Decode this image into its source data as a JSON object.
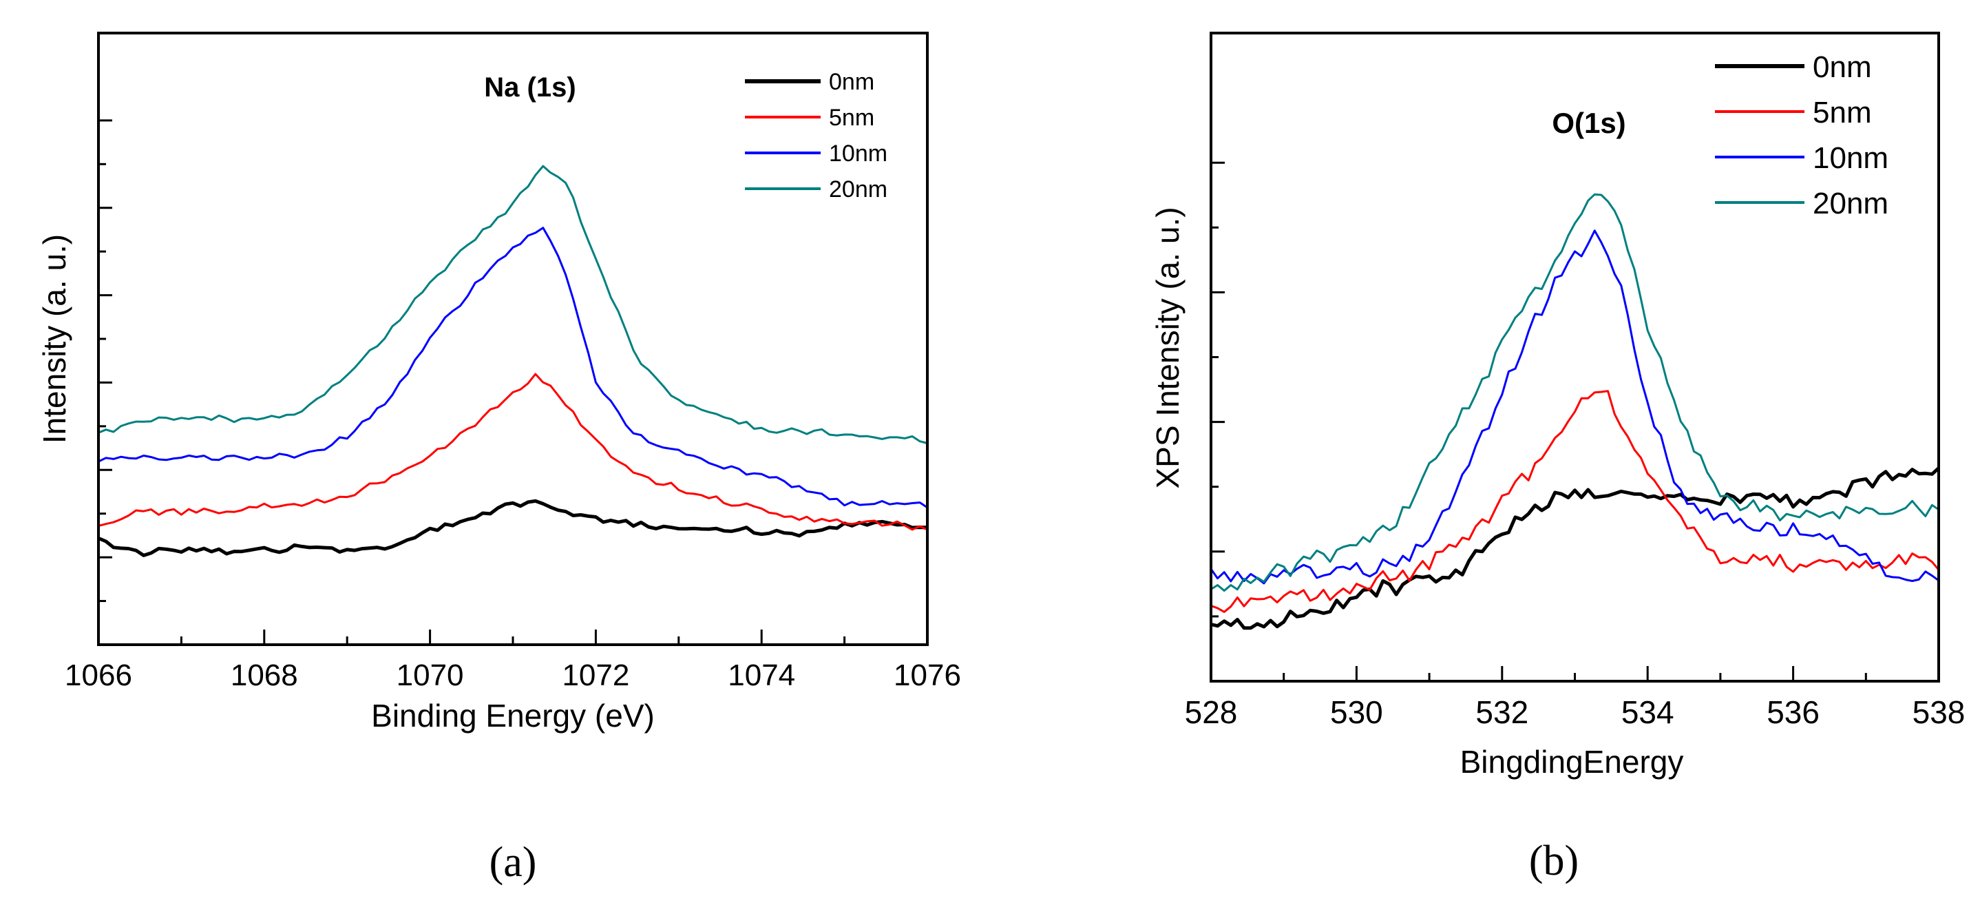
{
  "figure": {
    "panel_labels": [
      "(a)",
      "(b)"
    ]
  },
  "chart_data": [
    {
      "type": "line",
      "panel_label": "(a)",
      "title": "",
      "annotation": "Na (1s)",
      "xlabel": "Binding Energy (eV)",
      "ylabel": "Intensity (a. u.)",
      "xlim": [
        1066,
        1076
      ],
      "ylim": [
        0,
        100
      ],
      "xticks": [
        1066,
        1068,
        1070,
        1072,
        1074,
        1076
      ],
      "legend_position": "top-right",
      "series": [
        {
          "name": "0nm",
          "color": "#000000",
          "x": [
            1066,
            1066.5,
            1067,
            1067.5,
            1068,
            1068.5,
            1069,
            1069.5,
            1070,
            1070.5,
            1071,
            1071.3,
            1071.6,
            1072,
            1072.5,
            1073,
            1073.5,
            1074,
            1074.5,
            1075,
            1075.5,
            1076
          ],
          "y": [
            17,
            15,
            15.5,
            15,
            15.5,
            16,
            15.5,
            16,
            18.5,
            20.5,
            23,
            23,
            21.5,
            20.5,
            19.5,
            19,
            19,
            18.5,
            18,
            19.5,
            20,
            19
          ]
        },
        {
          "name": "5nm",
          "color": "#ff0000",
          "x": [
            1066,
            1066.5,
            1067,
            1067.5,
            1068,
            1068.5,
            1069,
            1069.5,
            1070,
            1070.5,
            1071,
            1071.3,
            1071.6,
            1072,
            1072.5,
            1073,
            1073.5,
            1074,
            1074.5,
            1075,
            1075.5,
            1076
          ],
          "y": [
            19.5,
            22,
            21.5,
            22,
            22.5,
            23,
            24.5,
            27,
            31,
            35.5,
            41,
            44,
            40,
            33,
            28,
            25.5,
            23.5,
            22,
            20.5,
            20,
            20,
            19
          ]
        },
        {
          "name": "10nm",
          "color": "#0000ff",
          "x": [
            1066,
            1066.5,
            1067,
            1067.5,
            1068,
            1068.5,
            1069,
            1069.5,
            1070,
            1070.5,
            1071,
            1071.4,
            1071.7,
            1072,
            1072.5,
            1073,
            1073.5,
            1074,
            1074.5,
            1075,
            1075.5,
            1076
          ],
          "y": [
            30.5,
            30.5,
            30.5,
            30.5,
            30.5,
            31,
            34,
            40,
            50,
            58,
            65,
            68.5,
            58,
            43,
            34,
            31.5,
            29,
            28,
            25.5,
            23,
            23,
            23
          ]
        },
        {
          "name": "20nm",
          "color": "#008080",
          "x": [
            1066,
            1066.5,
            1067,
            1067.5,
            1068,
            1068.5,
            1069,
            1069.5,
            1070,
            1070.5,
            1071,
            1071.4,
            1071.7,
            1072,
            1072.5,
            1073,
            1073.5,
            1074,
            1074.5,
            1075,
            1075.5,
            1076
          ],
          "y": [
            34.5,
            36.5,
            37,
            37,
            37,
            38.5,
            44,
            51,
            59,
            66,
            72,
            78.5,
            74,
            63,
            47,
            40,
            37.5,
            35,
            35,
            34.5,
            34,
            33.5
          ]
        }
      ]
    },
    {
      "type": "line",
      "panel_label": "(b)",
      "title": "",
      "annotation": "O(1s)",
      "xlabel": "BingdingEnergy",
      "ylabel": "XPS Intensity (a. u.)",
      "xlim": [
        528,
        538
      ],
      "ylim": [
        0,
        100
      ],
      "xticks": [
        528,
        530,
        532,
        534,
        536,
        538
      ],
      "legend_position": "top-right",
      "series": [
        {
          "name": "0nm",
          "color": "#000000",
          "x": [
            528,
            528.5,
            529,
            529.5,
            530,
            530.5,
            531,
            531.5,
            532,
            532.5,
            533,
            533.5,
            534,
            534.5,
            535,
            535.5,
            536,
            536.5,
            537,
            537.5,
            538
          ],
          "y": [
            8,
            9,
            9.5,
            11,
            13,
            14.5,
            16,
            17.5,
            23,
            27,
            30,
            28.5,
            29,
            29,
            28,
            28.5,
            28,
            29,
            31,
            32,
            32
          ]
        },
        {
          "name": "5nm",
          "color": "#ff0000",
          "x": [
            528,
            528.5,
            529,
            529.5,
            530,
            530.5,
            531,
            531.5,
            532,
            532.5,
            533,
            533.3,
            533.6,
            534,
            534.5,
            535,
            535.5,
            536,
            536.5,
            537,
            537.5,
            538
          ],
          "y": [
            12,
            12,
            12.5,
            13.5,
            14.5,
            16,
            18,
            22,
            28,
            34,
            42,
            46,
            41,
            32,
            25,
            19,
            18.5,
            18,
            18.5,
            18,
            18.5,
            18
          ]
        },
        {
          "name": "10nm",
          "color": "#0000ff",
          "x": [
            528,
            528.5,
            529,
            529.5,
            530,
            530.5,
            531,
            531.5,
            532,
            532.5,
            533,
            533.3,
            533.6,
            534,
            534.5,
            535,
            535.5,
            536,
            536.5,
            537,
            537.5,
            538
          ],
          "y": [
            16,
            16,
            16.5,
            17,
            17,
            18,
            22,
            32,
            45,
            57,
            66,
            69,
            62,
            42,
            28,
            25,
            24,
            23,
            22,
            19,
            16,
            15.5
          ]
        },
        {
          "name": "20nm",
          "color": "#008080",
          "x": [
            528,
            528.5,
            529,
            529.5,
            530,
            530.5,
            531,
            531.5,
            532,
            532.5,
            533,
            533.3,
            533.6,
            534,
            534.5,
            535,
            535.5,
            536,
            536.5,
            537,
            537.5,
            538
          ],
          "y": [
            14,
            16,
            17,
            19,
            21,
            24,
            33,
            42,
            52,
            61,
            70,
            77,
            71,
            55,
            39,
            29,
            26.5,
            25,
            25.5,
            26,
            26.5,
            27
          ]
        }
      ]
    }
  ]
}
